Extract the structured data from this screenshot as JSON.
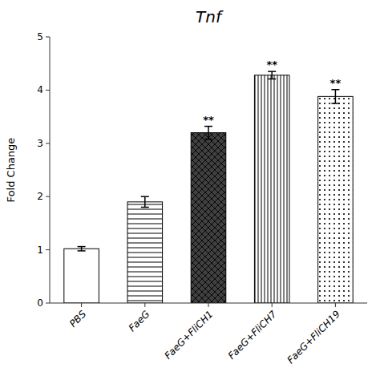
{
  "chart_data": {
    "type": "bar",
    "title": "Tnf",
    "y_label": "Fold Change",
    "categories": [
      "PBS",
      "FaeG",
      "FaeG+FliCH1",
      "FaeG+FliCH7",
      "FaeG+FliCH19"
    ],
    "values": [
      1.02,
      1.9,
      3.2,
      4.28,
      3.88
    ],
    "errors": [
      0.04,
      0.1,
      0.12,
      0.07,
      0.13
    ],
    "annotations": [
      null,
      null,
      "**",
      "**",
      "**"
    ],
    "colors": [
      "#ffffff",
      "#ffffff",
      "#404040",
      "#ffffff",
      "#ffffff"
    ],
    "ylim": [
      0,
      5
    ],
    "yticks": [
      0,
      1,
      2,
      3,
      4,
      5
    ],
    "grid": false
  }
}
